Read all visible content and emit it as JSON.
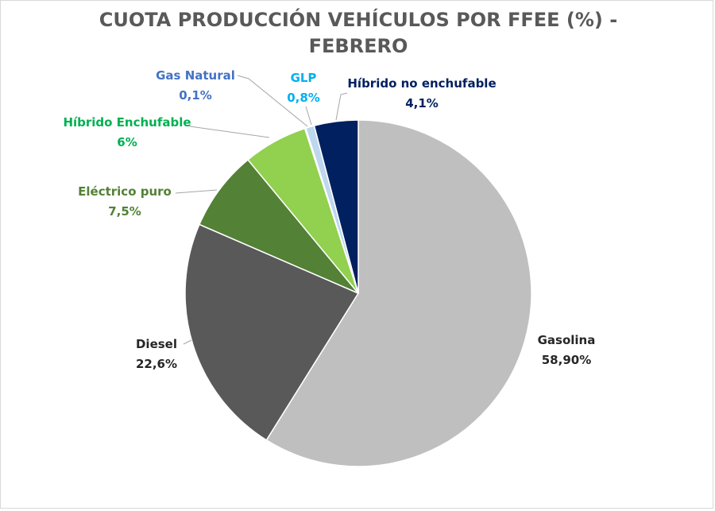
{
  "chart_data": {
    "type": "pie",
    "title_lines": [
      "CUOTA PRODUCCIÓN VEHÍCULOS POR FFEE (%) -",
      "FEBRERO"
    ],
    "slices": [
      {
        "key": "gasolina",
        "name": "Gasolina",
        "value": 58.9,
        "label_value": "58,90%",
        "color": "#bfbfbf",
        "label_color": "#262626"
      },
      {
        "key": "diesel",
        "name": "Diesel",
        "value": 22.6,
        "label_value": "22,6%",
        "color": "#595959",
        "label_color": "#262626"
      },
      {
        "key": "electrico",
        "name": "Eléctrico puro",
        "value": 7.5,
        "label_value": "7,5%",
        "color": "#538135",
        "label_color": "#538135"
      },
      {
        "key": "hibrido-enchufable",
        "name": "Híbrido Enchufable",
        "value": 6.0,
        "label_value": "6%",
        "color": "#92d050",
        "label_color": "#00b050"
      },
      {
        "key": "gas-natural",
        "name": "Gas Natural",
        "value": 0.1,
        "label_value": "0,1%",
        "color": "#4472c4",
        "label_color": "#4472c4"
      },
      {
        "key": "glp",
        "name": "GLP",
        "value": 0.8,
        "label_value": "0,8%",
        "color": "#bdd7ee",
        "label_color": "#00b0f0"
      },
      {
        "key": "hibrido-no-enchufable",
        "name": "Híbrido no enchufable",
        "value": 4.1,
        "label_value": "4,1%",
        "color": "#002060",
        "label_color": "#002060"
      }
    ]
  }
}
